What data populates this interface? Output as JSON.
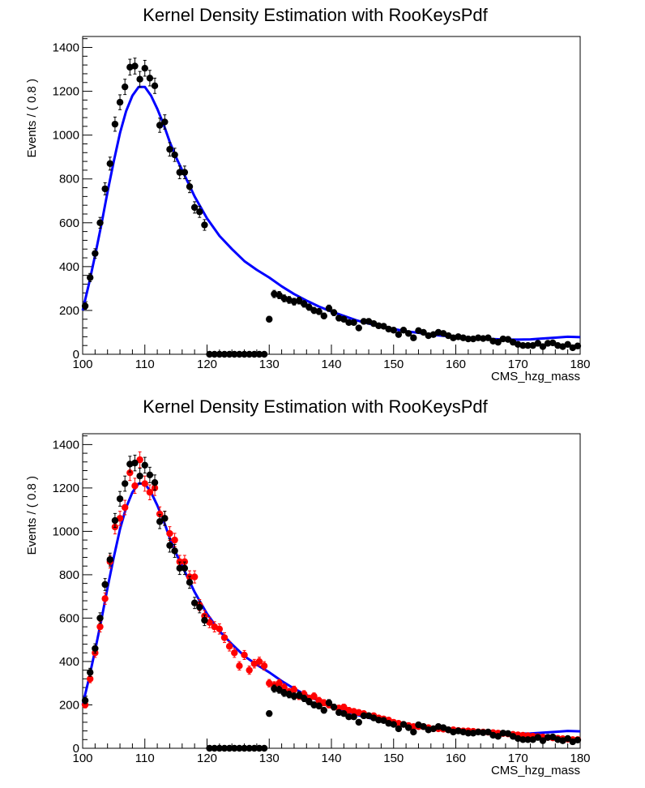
{
  "chart_data": [
    {
      "type": "scatter",
      "title": "Kernel Density Estimation with RooKeysPdf",
      "xlabel": "CMS_hzg_mass",
      "ylabel": "Events / ( 0.8 )",
      "xlim": [
        100,
        180
      ],
      "ylim": [
        0,
        1450
      ],
      "xticks": [
        "100",
        "110",
        "120",
        "130",
        "140",
        "150",
        "160",
        "170",
        "180"
      ],
      "yticks": [
        "0",
        "200",
        "400",
        "600",
        "800",
        "1000",
        "1200",
        "1400"
      ],
      "colors": {
        "data": "#000000",
        "curve": "#0000ff"
      },
      "series": [
        {
          "role": "data",
          "x": [
            100.4,
            101.2,
            102.0,
            102.8,
            103.6,
            104.4,
            105.2,
            106.0,
            106.8,
            107.6,
            108.4,
            109.2,
            110.0,
            110.8,
            111.6,
            112.4,
            113.2,
            114.0,
            114.8,
            115.6,
            116.4,
            117.2,
            118.0,
            118.8,
            119.6,
            120.4,
            121.2,
            122.0,
            122.8,
            123.6,
            124.4,
            125.2,
            126.0,
            126.8,
            127.6,
            128.4,
            129.2,
            130.0,
            130.8,
            131.6,
            132.4,
            133.2,
            134.0,
            134.8,
            135.6,
            136.4,
            137.2,
            138.0,
            138.8,
            139.6,
            140.4,
            141.2,
            142.0,
            142.8,
            143.6,
            144.4,
            145.2,
            146.0,
            146.8,
            147.6,
            148.4,
            149.2,
            150.0,
            150.8,
            151.6,
            152.4,
            153.2,
            154.0,
            154.8,
            155.6,
            156.4,
            157.2,
            158.0,
            158.8,
            159.6,
            160.4,
            161.2,
            162.0,
            162.8,
            163.6,
            164.4,
            165.2,
            166.0,
            166.8,
            167.6,
            168.4,
            169.2,
            170.0,
            170.8,
            171.6,
            172.4,
            173.2,
            174.0,
            174.8,
            175.6,
            176.4,
            177.2,
            178.0,
            178.8,
            179.6
          ],
          "y": [
            220,
            350,
            460,
            600,
            755,
            870,
            1050,
            1150,
            1220,
            1310,
            1315,
            1255,
            1305,
            1260,
            1225,
            1045,
            1060,
            935,
            910,
            830,
            830,
            765,
            670,
            650,
            590,
            0,
            0,
            0,
            0,
            0,
            0,
            0,
            0,
            0,
            0,
            0,
            0,
            160,
            275,
            270,
            255,
            248,
            240,
            245,
            230,
            215,
            200,
            195,
            175,
            210,
            190,
            165,
            160,
            145,
            145,
            120,
            150,
            150,
            140,
            130,
            128,
            115,
            110,
            90,
            110,
            95,
            75,
            108,
            100,
            85,
            90,
            100,
            95,
            85,
            75,
            80,
            75,
            70,
            70,
            75,
            72,
            75,
            60,
            55,
            70,
            68,
            55,
            45,
            40,
            40,
            40,
            50,
            35,
            50,
            52,
            40,
            35,
            45,
            30,
            38
          ]
        },
        {
          "role": "curve",
          "x": [
            100,
            101,
            102,
            103,
            104,
            105,
            106,
            107,
            108,
            109,
            110,
            111,
            112,
            113,
            114,
            115,
            116,
            117,
            118,
            119,
            120,
            122,
            124,
            126,
            128,
            130,
            132,
            134,
            136,
            138,
            140,
            142,
            144,
            146,
            148,
            150,
            152,
            154,
            156,
            158,
            160,
            162,
            164,
            166,
            168,
            170,
            172,
            174,
            176,
            178,
            180
          ],
          "y": [
            200,
            320,
            450,
            590,
            740,
            880,
            1010,
            1110,
            1180,
            1220,
            1220,
            1180,
            1120,
            1050,
            970,
            900,
            840,
            780,
            720,
            670,
            620,
            540,
            480,
            425,
            385,
            350,
            310,
            275,
            245,
            218,
            195,
            175,
            155,
            140,
            127,
            115,
            105,
            98,
            90,
            84,
            80,
            76,
            72,
            69,
            67,
            67,
            68,
            72,
            76,
            80,
            78
          ]
        }
      ]
    },
    {
      "type": "scatter",
      "title": "Kernel Density Estimation with RooKeysPdf",
      "xlabel": "CMS_hzg_mass",
      "ylabel": "Events / ( 0.8 )",
      "xlim": [
        100,
        180
      ],
      "ylim": [
        0,
        1450
      ],
      "xticks": [
        "100",
        "110",
        "120",
        "130",
        "140",
        "150",
        "160",
        "170",
        "180"
      ],
      "yticks": [
        "0",
        "200",
        "400",
        "600",
        "800",
        "1000",
        "1200",
        "1400"
      ],
      "colors": {
        "data": "#000000",
        "generated": "#ff0000",
        "curve": "#0000ff"
      },
      "series": [
        {
          "role": "data",
          "x": [
            100.4,
            101.2,
            102.0,
            102.8,
            103.6,
            104.4,
            105.2,
            106.0,
            106.8,
            107.6,
            108.4,
            109.2,
            110.0,
            110.8,
            111.6,
            112.4,
            113.2,
            114.0,
            114.8,
            115.6,
            116.4,
            117.2,
            118.0,
            118.8,
            119.6,
            120.4,
            121.2,
            122.0,
            122.8,
            123.6,
            124.4,
            125.2,
            126.0,
            126.8,
            127.6,
            128.4,
            129.2,
            130.0,
            130.8,
            131.6,
            132.4,
            133.2,
            134.0,
            134.8,
            135.6,
            136.4,
            137.2,
            138.0,
            138.8,
            139.6,
            140.4,
            141.2,
            142.0,
            142.8,
            143.6,
            144.4,
            145.2,
            146.0,
            146.8,
            147.6,
            148.4,
            149.2,
            150.0,
            150.8,
            151.6,
            152.4,
            153.2,
            154.0,
            154.8,
            155.6,
            156.4,
            157.2,
            158.0,
            158.8,
            159.6,
            160.4,
            161.2,
            162.0,
            162.8,
            163.6,
            164.4,
            165.2,
            166.0,
            166.8,
            167.6,
            168.4,
            169.2,
            170.0,
            170.8,
            171.6,
            172.4,
            173.2,
            174.0,
            174.8,
            175.6,
            176.4,
            177.2,
            178.0,
            178.8,
            179.6
          ],
          "y": [
            220,
            350,
            460,
            600,
            755,
            870,
            1050,
            1150,
            1220,
            1310,
            1315,
            1255,
            1305,
            1260,
            1225,
            1045,
            1060,
            935,
            910,
            830,
            830,
            765,
            670,
            650,
            590,
            0,
            0,
            0,
            0,
            0,
            0,
            0,
            0,
            0,
            0,
            0,
            0,
            160,
            275,
            270,
            255,
            248,
            240,
            245,
            230,
            215,
            200,
            195,
            175,
            210,
            190,
            165,
            160,
            145,
            145,
            120,
            150,
            150,
            140,
            130,
            128,
            115,
            110,
            90,
            110,
            95,
            75,
            108,
            100,
            85,
            90,
            100,
            95,
            85,
            75,
            80,
            75,
            70,
            70,
            75,
            72,
            75,
            60,
            55,
            70,
            68,
            55,
            45,
            40,
            40,
            40,
            50,
            35,
            50,
            52,
            40,
            35,
            45,
            30,
            38
          ]
        },
        {
          "role": "generated",
          "x": [
            100.4,
            101.2,
            102.0,
            102.8,
            103.6,
            104.4,
            105.2,
            106.0,
            106.8,
            107.6,
            108.4,
            109.2,
            110.0,
            110.8,
            111.6,
            112.4,
            113.2,
            114.0,
            114.8,
            115.6,
            116.4,
            117.2,
            118.0,
            118.8,
            119.6,
            120.4,
            121.2,
            122.0,
            122.8,
            123.6,
            124.4,
            125.2,
            126.0,
            126.8,
            127.6,
            128.4,
            129.2,
            130.0,
            130.8,
            131.6,
            132.4,
            133.2,
            134.0,
            134.8,
            135.6,
            136.4,
            137.2,
            138.0,
            138.8,
            139.6,
            140.4,
            141.2,
            142.0,
            142.8,
            143.6,
            144.4,
            145.2,
            146.0,
            146.8,
            147.6,
            148.4,
            149.2,
            150.0,
            150.8,
            151.6,
            152.4,
            153.2,
            154.0,
            154.8,
            155.6,
            156.4,
            157.2,
            158.0,
            158.8,
            159.6,
            160.4,
            161.2,
            162.0,
            162.8,
            163.6,
            164.4,
            165.2,
            166.0,
            166.8,
            167.6,
            168.4,
            169.2,
            170.0,
            170.8,
            171.6,
            172.4,
            173.2,
            174.0,
            174.8,
            175.6,
            176.4,
            177.2,
            178.0,
            178.8,
            179.6
          ],
          "y": [
            200,
            320,
            440,
            560,
            690,
            860,
            1020,
            1060,
            1110,
            1270,
            1210,
            1330,
            1220,
            1180,
            1200,
            1080,
            1060,
            990,
            960,
            860,
            860,
            790,
            790,
            660,
            610,
            580,
            560,
            550,
            510,
            470,
            440,
            380,
            430,
            360,
            390,
            400,
            380,
            300,
            290,
            300,
            280,
            260,
            270,
            240,
            250,
            230,
            240,
            220,
            210,
            200,
            190,
            185,
            190,
            175,
            170,
            165,
            160,
            150,
            150,
            140,
            135,
            130,
            120,
            115,
            110,
            105,
            100,
            100,
            100,
            95,
            90,
            90,
            88,
            85,
            85,
            82,
            80,
            80,
            78,
            76,
            75,
            74,
            72,
            70,
            68,
            66,
            64,
            62,
            60,
            58,
            56,
            54,
            52,
            50,
            48,
            46,
            44,
            42,
            40,
            40
          ]
        },
        {
          "role": "curve",
          "x": [
            100,
            101,
            102,
            103,
            104,
            105,
            106,
            107,
            108,
            109,
            110,
            111,
            112,
            113,
            114,
            115,
            116,
            117,
            118,
            119,
            120,
            122,
            124,
            126,
            128,
            130,
            132,
            134,
            136,
            138,
            140,
            142,
            144,
            146,
            148,
            150,
            152,
            154,
            156,
            158,
            160,
            162,
            164,
            166,
            168,
            170,
            172,
            174,
            176,
            178,
            180
          ],
          "y": [
            200,
            320,
            450,
            590,
            740,
            880,
            1010,
            1110,
            1180,
            1220,
            1220,
            1180,
            1120,
            1050,
            970,
            900,
            840,
            780,
            720,
            670,
            620,
            540,
            480,
            425,
            385,
            350,
            310,
            275,
            245,
            218,
            195,
            175,
            155,
            140,
            127,
            115,
            105,
            98,
            90,
            84,
            80,
            76,
            72,
            69,
            67,
            67,
            68,
            72,
            76,
            80,
            78
          ]
        }
      ]
    }
  ]
}
